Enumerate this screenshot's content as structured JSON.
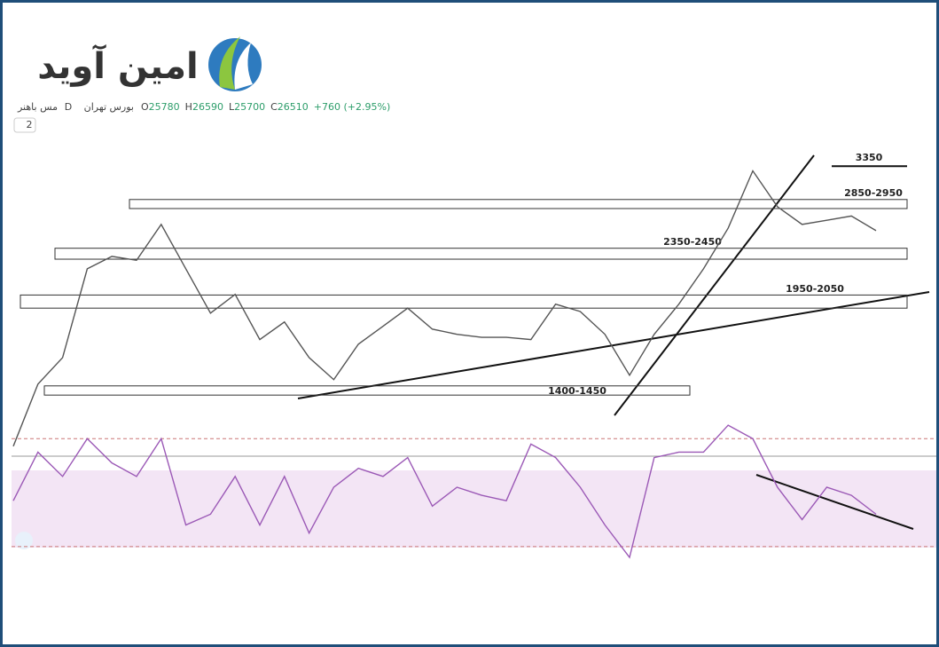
{
  "header": {
    "logo": "امین آوید",
    "symbol": "مس باهنر",
    "interval": "D",
    "exchange": "بورس تهران",
    "ohlc": [
      {
        "key": "O",
        "value": 25780
      },
      {
        "key": "H",
        "value": 26590
      },
      {
        "key": "L",
        "value": 25700
      },
      {
        "key": "C",
        "value": 26510
      }
    ],
    "change": "+760 (+2.95%)",
    "indicator_count": "2"
  },
  "chart_data": [
    {
      "type": "line",
      "name": "price",
      "color": "#555555",
      "log_scale": true,
      "ylim": [
        1113,
        3890
      ],
      "values": [
        1152,
        1460,
        1615,
        2265,
        2375,
        2340,
        2683,
        2265,
        1913,
        2055,
        1730,
        1850,
        1615,
        1485,
        1700,
        1820,
        1950,
        1800,
        1765,
        1745,
        1745,
        1730,
        1980,
        1925,
        1765,
        1510,
        1765,
        1980,
        2265,
        2645,
        3290,
        2870,
        2683,
        2725,
        2770,
        2620
      ],
      "zones": [
        {
          "label": "2850-2950",
          "low": 2850,
          "high": 2950
        },
        {
          "label": "2350-2450",
          "low": 2350,
          "high": 2450
        },
        {
          "label": "1950-2050",
          "low": 1950,
          "high": 2050
        },
        {
          "label": "1400-1450",
          "low": 1400,
          "high": 1450
        }
      ],
      "levels": [
        {
          "label": "3350",
          "value": 3350
        }
      ]
    },
    {
      "type": "line",
      "name": "rsi",
      "color": "#9b59b6",
      "ylim": [
        26,
        77
      ],
      "band": [
        30,
        70
      ],
      "values": [
        47,
        65,
        56,
        70,
        61,
        56,
        70,
        38,
        42,
        56,
        38,
        56,
        35,
        52,
        59,
        56,
        63,
        45,
        52,
        49,
        47,
        68,
        63,
        52,
        38,
        26,
        63,
        65,
        65,
        75,
        70,
        52,
        40,
        52,
        49,
        42
      ]
    }
  ]
}
